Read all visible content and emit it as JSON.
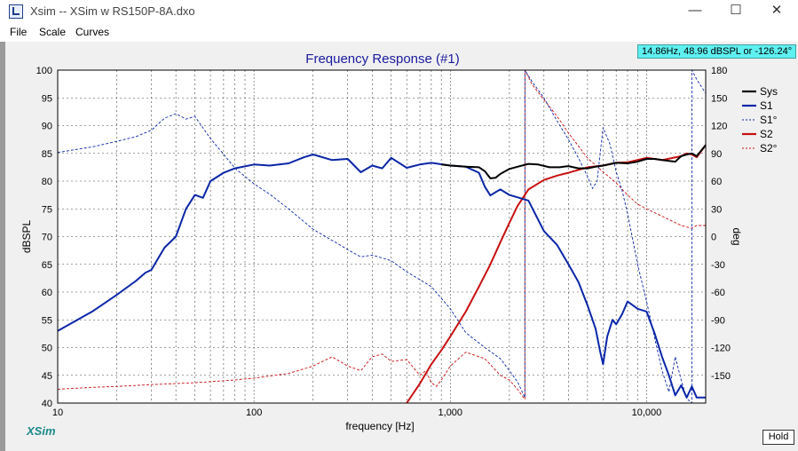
{
  "window": {
    "title": "Xsim -- XSim w RS150P-8A.dxo",
    "min_glyph": "—",
    "max_glyph": "☐",
    "close_glyph": "✕"
  },
  "menu": [
    "File",
    "Scale",
    "Curves"
  ],
  "readout": "14.86Hz, 48.96 dBSPL or -126.24°",
  "logo": "XSim",
  "hold_label": "Hold",
  "colors": {
    "sys": "#000000",
    "s1": "#0a26a8",
    "s2": "#c81010",
    "title": "#1a1aa0",
    "readout_bg": "#5ff0f0"
  },
  "chart_data": {
    "type": "line",
    "title": "Frequency Response (#1)",
    "xlabel": "frequency [Hz]",
    "ylabel": "dBSPL",
    "y2label": "deg",
    "xscale": "log",
    "xlim": [
      10,
      20000
    ],
    "ylim": [
      40,
      100
    ],
    "y2lim": [
      -180,
      180
    ],
    "xticks": [
      10,
      100,
      1000,
      10000
    ],
    "xtick_labels": [
      "10",
      "100",
      "1,000",
      "10,000"
    ],
    "yticks": [
      40,
      45,
      50,
      55,
      60,
      65,
      70,
      75,
      80,
      85,
      90,
      95,
      100
    ],
    "y2ticks": [
      -150,
      -120,
      -90,
      -60,
      -30,
      0,
      30,
      60,
      90,
      120,
      150,
      180
    ],
    "grid": true,
    "legend_position": "right",
    "legend": [
      "Sys",
      "S1",
      "S1°",
      "S2",
      "S2°"
    ],
    "series": [
      {
        "name": "Sys",
        "axis": "left",
        "style": "solid",
        "color": "#000000",
        "x": [
          900,
          1000,
          1200,
          1400,
          1500,
          1600,
          1700,
          1800,
          2000,
          2200,
          2500,
          2800,
          3200,
          3600,
          4000,
          4500,
          5000,
          5500,
          6000,
          7000,
          8000,
          9000,
          10000,
          11000,
          12000,
          14000,
          15000,
          16000,
          17000,
          18000,
          20000
        ],
        "y": [
          83,
          82.8,
          82.6,
          82.5,
          81.8,
          80.5,
          80.6,
          81.3,
          82.2,
          82.6,
          83.1,
          83.0,
          82.5,
          82.5,
          82.7,
          82.3,
          82.3,
          82.6,
          82.8,
          83.3,
          83.2,
          83.5,
          84,
          84,
          83.8,
          83.5,
          84.5,
          84.8,
          85,
          84.5,
          86.5
        ]
      },
      {
        "name": "S1",
        "axis": "left",
        "style": "solid",
        "color": "#0a26a8",
        "x": [
          10,
          15,
          20,
          25,
          28,
          30,
          35,
          40,
          45,
          50,
          55,
          60,
          70,
          80,
          100,
          120,
          150,
          180,
          200,
          250,
          300,
          350,
          400,
          450,
          500,
          600,
          700,
          800,
          1000,
          1200,
          1400,
          1500,
          1600,
          1700,
          1800,
          2000,
          2500,
          3000,
          3500,
          4000,
          4500,
          5000,
          5500,
          5800,
          6000,
          6300,
          6700,
          7000,
          7500,
          8000,
          9000,
          10000,
          11000,
          12000,
          13000,
          14000,
          15000,
          16000,
          17000,
          18000,
          20000
        ],
        "y": [
          53,
          56.5,
          59.5,
          62,
          63.5,
          64,
          68,
          70,
          75,
          77.5,
          77,
          80,
          81.5,
          82.3,
          83,
          82.8,
          83.2,
          84.3,
          84.8,
          83.8,
          84,
          81.6,
          82.8,
          82.3,
          84.2,
          82.4,
          83,
          83.3,
          82.8,
          82.6,
          81.5,
          79,
          77.4,
          78,
          78.5,
          77.5,
          76.5,
          71,
          68.5,
          65,
          61.8,
          57.6,
          53.4,
          49.3,
          47,
          52,
          55,
          54.2,
          56,
          58.3,
          57,
          56.5,
          52.5,
          48.3,
          45,
          41.4,
          43.2,
          41,
          43,
          41,
          41
        ]
      },
      {
        "name": "S1°",
        "axis": "right",
        "style": "dashed",
        "color": "#0a26a8",
        "x": [
          10,
          15,
          20,
          25,
          30,
          35,
          40,
          45,
          50,
          60,
          70,
          80,
          100,
          120,
          150,
          200,
          300,
          350,
          400,
          500,
          600,
          800,
          1000,
          1200,
          1500,
          1800,
          2000,
          2200,
          2399,
          2401,
          2600,
          3000,
          3500,
          4000,
          4500,
          5000,
          5300,
          5600,
          6000,
          6500,
          7000,
          7500,
          8000,
          9000,
          10000,
          11000,
          12000,
          13000,
          14000,
          15000,
          16000,
          16999,
          17001,
          18000,
          20000
        ],
        "y": [
          91,
          97,
          103,
          108,
          115,
          128,
          133,
          127,
          130,
          106,
          89,
          74,
          57,
          46,
          30,
          8,
          -14,
          -22,
          -20,
          -26,
          -38,
          -54,
          -78,
          -104,
          -120,
          -132,
          -145,
          -157,
          -174,
          180,
          168,
          150,
          125,
          105,
          85,
          65,
          52,
          60,
          118,
          100,
          70,
          50,
          25,
          -30,
          -70,
          -110,
          -145,
          -168,
          -130,
          -155,
          -175,
          -180,
          180,
          170,
          155
        ]
      },
      {
        "name": "S2",
        "axis": "left",
        "style": "solid",
        "color": "#c81010",
        "x": [
          600,
          700,
          800,
          900,
          1000,
          1200,
          1400,
          1600,
          1800,
          2000,
          2200,
          2500,
          3000,
          3500,
          4000,
          5000,
          6000,
          7000,
          8000,
          10000,
          12000,
          15000,
          16000,
          17000,
          18000,
          20000
        ],
        "y": [
          40,
          43.5,
          47,
          49.5,
          52,
          56.5,
          61,
          65,
          69,
          72.5,
          75.5,
          78.5,
          80.2,
          81,
          81.5,
          82.5,
          82.8,
          83.3,
          83.4,
          84.2,
          83.8,
          84.5,
          85,
          84.8,
          84.3,
          86.5
        ]
      },
      {
        "name": "S2°",
        "axis": "right",
        "style": "dashed",
        "color": "#c81010",
        "x": [
          10,
          15,
          20,
          30,
          50,
          80,
          100,
          150,
          200,
          250,
          300,
          350,
          400,
          450,
          500,
          600,
          700,
          750,
          800,
          850,
          900,
          1000,
          1200,
          1500,
          1800,
          2000,
          2200,
          2399,
          2401,
          2600,
          3000,
          3500,
          4000,
          5000,
          6000,
          7000,
          8000,
          9000,
          10000,
          12000,
          15000,
          17000,
          18000,
          20000
        ],
        "y": [
          -165,
          -163,
          -162,
          -160,
          -158,
          -155,
          -153,
          -148,
          -140,
          -130,
          -140,
          -145,
          -130,
          -127,
          -135,
          -133,
          -150,
          -145,
          -158,
          -162,
          -155,
          -140,
          -125,
          -132,
          -150,
          -155,
          -165,
          -176,
          180,
          165,
          148,
          130,
          112,
          85,
          70,
          58,
          45,
          35,
          30,
          22,
          12,
          9,
          12,
          12
        ]
      }
    ]
  }
}
